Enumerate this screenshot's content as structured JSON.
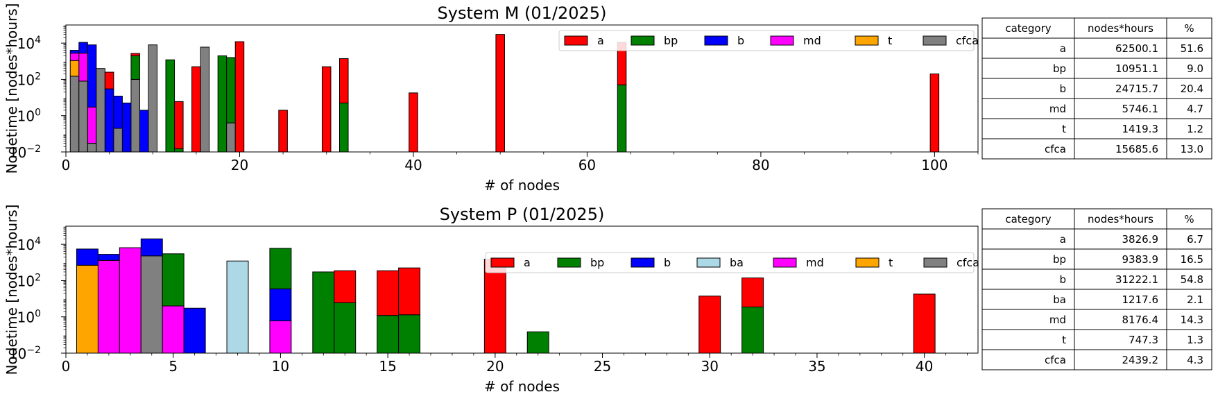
{
  "colors": {
    "a": "#ff0000",
    "bp": "#008000",
    "b": "#0000ff",
    "ba": "#add8e6",
    "md": "#ff00ff",
    "t": "#ffa500",
    "cfca": "#808080"
  },
  "chart_data": [
    {
      "type": "bar",
      "title": "System M (01/2025)",
      "xlabel": "# of nodes",
      "ylabel": "Nodetime [nodes*hours]",
      "yscale": "log",
      "ylim": [
        0.01,
        100000
      ],
      "xlim": [
        0,
        105
      ],
      "xticks": [
        0,
        20,
        40,
        60,
        80,
        100
      ],
      "yticks": [
        "10^-2",
        "10^0",
        "10^2",
        "10^4"
      ],
      "bar_width": 1,
      "stacked": true,
      "legend": {
        "placement": "top-right",
        "ncol": 6,
        "entries": [
          "a",
          "bp",
          "b",
          "md",
          "t",
          "cfca"
        ]
      },
      "bars": [
        {
          "x": 1,
          "segments": [
            {
              "cat": "cfca",
              "value": 150
            },
            {
              "cat": "t",
              "value": 1100
            },
            {
              "cat": "md",
              "value": 2800
            },
            {
              "cat": "b",
              "value": 4000
            }
          ]
        },
        {
          "x": 2,
          "segments": [
            {
              "cat": "cfca",
              "value": 80
            },
            {
              "cat": "md",
              "value": 2800
            },
            {
              "cat": "b",
              "value": 11000
            }
          ]
        },
        {
          "x": 3,
          "segments": [
            {
              "cat": "cfca",
              "value": 0.03
            },
            {
              "cat": "md",
              "value": 3
            },
            {
              "cat": "b",
              "value": 8000
            }
          ]
        },
        {
          "x": 4,
          "segments": [
            {
              "cat": "cfca",
              "value": 400
            }
          ]
        },
        {
          "x": 5,
          "segments": [
            {
              "cat": "b",
              "value": 30
            },
            {
              "cat": "a",
              "value": 250
            }
          ]
        },
        {
          "x": 6,
          "segments": [
            {
              "cat": "cfca",
              "value": 0.2
            },
            {
              "cat": "b",
              "value": 12
            }
          ]
        },
        {
          "x": 7,
          "segments": [
            {
              "cat": "b",
              "value": 5
            }
          ]
        },
        {
          "x": 8,
          "segments": [
            {
              "cat": "cfca",
              "value": 100
            },
            {
              "cat": "bp",
              "value": 2000
            },
            {
              "cat": "a",
              "value": 2700
            }
          ]
        },
        {
          "x": 9,
          "segments": [
            {
              "cat": "b",
              "value": 2
            }
          ]
        },
        {
          "x": 10,
          "segments": [
            {
              "cat": "cfca",
              "value": 8000
            }
          ]
        },
        {
          "x": 12,
          "segments": [
            {
              "cat": "bp",
              "value": 1200
            }
          ]
        },
        {
          "x": 13,
          "segments": [
            {
              "cat": "bp",
              "value": 0.015
            },
            {
              "cat": "a",
              "value": 6
            }
          ]
        },
        {
          "x": 15,
          "segments": [
            {
              "cat": "a",
              "value": 500
            }
          ]
        },
        {
          "x": 16,
          "segments": [
            {
              "cat": "cfca",
              "value": 6000
            }
          ]
        },
        {
          "x": 18,
          "segments": [
            {
              "cat": "bp",
              "value": 2000
            }
          ]
        },
        {
          "x": 19,
          "segments": [
            {
              "cat": "cfca",
              "value": 0.4
            },
            {
              "cat": "bp",
              "value": 1600
            }
          ]
        },
        {
          "x": 20,
          "segments": [
            {
              "cat": "a",
              "value": 12000
            }
          ]
        },
        {
          "x": 25,
          "segments": [
            {
              "cat": "a",
              "value": 2
            }
          ]
        },
        {
          "x": 30,
          "segments": [
            {
              "cat": "a",
              "value": 500
            }
          ]
        },
        {
          "x": 32,
          "segments": [
            {
              "cat": "bp",
              "value": 5
            },
            {
              "cat": "a",
              "value": 1400
            }
          ]
        },
        {
          "x": 40,
          "segments": [
            {
              "cat": "a",
              "value": 18
            }
          ]
        },
        {
          "x": 50,
          "segments": [
            {
              "cat": "a",
              "value": 30000
            }
          ]
        },
        {
          "x": 64,
          "segments": [
            {
              "cat": "bp",
              "value": 50
            },
            {
              "cat": "a",
              "value": 11000
            }
          ]
        },
        {
          "x": 100,
          "segments": [
            {
              "cat": "a",
              "value": 200
            }
          ]
        }
      ],
      "table": {
        "headers": [
          "category",
          "nodes*hours",
          "%"
        ],
        "rows": [
          [
            "a",
            "62500.1",
            "51.6"
          ],
          [
            "bp",
            "10951.1",
            "9.0"
          ],
          [
            "b",
            "24715.7",
            "20.4"
          ],
          [
            "md",
            "5746.1",
            "4.7"
          ],
          [
            "t",
            "1419.3",
            "1.2"
          ],
          [
            "cfca",
            "15685.6",
            "13.0"
          ]
        ]
      }
    },
    {
      "type": "bar",
      "title": "System P (01/2025)",
      "xlabel": "# of nodes",
      "ylabel": "Nodetime [nodes*hours]",
      "yscale": "log",
      "ylim": [
        0.01,
        100000
      ],
      "xlim": [
        0,
        42.5
      ],
      "xticks": [
        0,
        5,
        10,
        15,
        20,
        25,
        30,
        35,
        40
      ],
      "yticks": [
        "10^-2",
        "10^0",
        "10^2",
        "10^4"
      ],
      "bar_width": 1,
      "stacked": true,
      "legend": {
        "placement": "top-right",
        "ncol": 7,
        "entries": [
          "a",
          "bp",
          "b",
          "ba",
          "md",
          "t",
          "cfca"
        ]
      },
      "bars": [
        {
          "x": 1,
          "segments": [
            {
              "cat": "t",
              "value": 700
            },
            {
              "cat": "b",
              "value": 5500
            }
          ]
        },
        {
          "x": 2,
          "segments": [
            {
              "cat": "md",
              "value": 1300
            },
            {
              "cat": "b",
              "value": 2800
            }
          ]
        },
        {
          "x": 3,
          "segments": [
            {
              "cat": "md",
              "value": 6500
            }
          ]
        },
        {
          "x": 4,
          "segments": [
            {
              "cat": "cfca",
              "value": 2300
            },
            {
              "cat": "b",
              "value": 20000
            }
          ]
        },
        {
          "x": 5,
          "segments": [
            {
              "cat": "md",
              "value": 4
            },
            {
              "cat": "bp",
              "value": 3000
            }
          ]
        },
        {
          "x": 6,
          "segments": [
            {
              "cat": "b",
              "value": 3
            }
          ]
        },
        {
          "x": 8,
          "segments": [
            {
              "cat": "ba",
              "value": 1200
            }
          ]
        },
        {
          "x": 10,
          "segments": [
            {
              "cat": "md",
              "value": 0.6
            },
            {
              "cat": "b",
              "value": 35
            },
            {
              "cat": "bp",
              "value": 6000
            }
          ]
        },
        {
          "x": 12,
          "segments": [
            {
              "cat": "bp",
              "value": 300
            }
          ]
        },
        {
          "x": 13,
          "segments": [
            {
              "cat": "bp",
              "value": 6
            },
            {
              "cat": "a",
              "value": 350
            }
          ]
        },
        {
          "x": 15,
          "segments": [
            {
              "cat": "bp",
              "value": 1.2
            },
            {
              "cat": "a",
              "value": 350
            }
          ]
        },
        {
          "x": 16,
          "segments": [
            {
              "cat": "bp",
              "value": 1.3
            },
            {
              "cat": "a",
              "value": 500
            }
          ]
        },
        {
          "x": 20,
          "segments": [
            {
              "cat": "a",
              "value": 1500
            }
          ]
        },
        {
          "x": 22,
          "segments": [
            {
              "cat": "bp",
              "value": 0.15
            }
          ]
        },
        {
          "x": 30,
          "segments": [
            {
              "cat": "a",
              "value": 14
            }
          ]
        },
        {
          "x": 32,
          "segments": [
            {
              "cat": "bp",
              "value": 3.5
            },
            {
              "cat": "a",
              "value": 140
            }
          ]
        },
        {
          "x": 40,
          "segments": [
            {
              "cat": "a",
              "value": 18
            }
          ]
        }
      ],
      "table": {
        "headers": [
          "category",
          "nodes*hours",
          "%"
        ],
        "rows": [
          [
            "a",
            "3826.9",
            "6.7"
          ],
          [
            "bp",
            "9383.9",
            "16.5"
          ],
          [
            "b",
            "31222.1",
            "54.8"
          ],
          [
            "ba",
            "1217.6",
            "2.1"
          ],
          [
            "md",
            "8176.4",
            "14.3"
          ],
          [
            "t",
            "747.3",
            "1.3"
          ],
          [
            "cfca",
            "2439.2",
            "4.3"
          ]
        ]
      }
    }
  ]
}
